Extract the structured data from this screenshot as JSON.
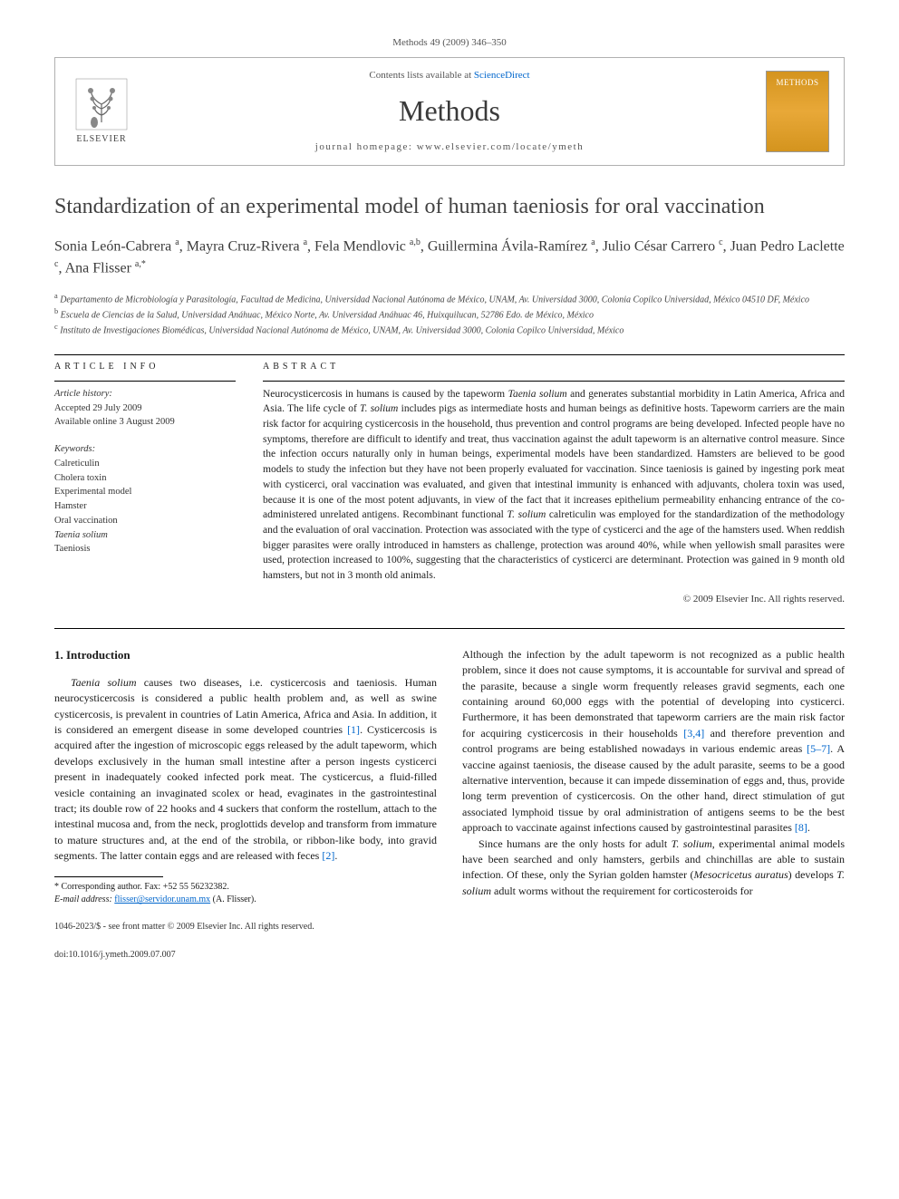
{
  "header": {
    "citation": "Methods 49 (2009) 346–350",
    "contents_prefix": "Contents lists available at ",
    "contents_link": "ScienceDirect",
    "journal": "Methods",
    "homepage_prefix": "journal homepage: ",
    "homepage_url": "www.elsevier.com/locate/ymeth",
    "elsevier": "ELSEVIER",
    "cover_label": "METHODS"
  },
  "article": {
    "title": "Standardization of an experimental model of human taeniosis for oral vaccination",
    "authors_html": "Sonia León-Cabrera <sup>a</sup>, Mayra Cruz-Rivera <sup>a</sup>, Fela Mendlovic <sup>a,b</sup>, Guillermina Ávila-Ramírez <sup>a</sup>, Julio César Carrero <sup>c</sup>, Juan Pedro Laclette <sup>c</sup>, Ana Flisser <sup>a,*</sup>",
    "affiliations": [
      "a Departamento de Microbiología y Parasitología, Facultad de Medicina, Universidad Nacional Autónoma de México, UNAM, Av. Universidad 3000, Colonia Copilco Universidad, México 04510 DF, México",
      "b Escuela de Ciencias de la Salud, Universidad Anáhuac, México Norte, Av. Universidad Anáhuac 46, Huixquilucan, 52786 Edo. de México, México",
      "c Instituto de Investigaciones Biomédicas, Universidad Nacional Autónoma de México, UNAM, Av. Universidad 3000, Colonia Copilco Universidad, México"
    ]
  },
  "info": {
    "label": "ARTICLE INFO",
    "history_label": "Article history:",
    "accepted": "Accepted 29 July 2009",
    "online": "Available online 3 August 2009",
    "keywords_label": "Keywords:",
    "keywords": [
      "Calreticulin",
      "Cholera toxin",
      "Experimental model",
      "Hamster",
      "Oral vaccination",
      "Taenia solium",
      "Taeniosis"
    ]
  },
  "abstract": {
    "label": "ABSTRACT",
    "text": "Neurocysticercosis in humans is caused by the tapeworm Taenia solium and generates substantial morbidity in Latin America, Africa and Asia. The life cycle of T. solium includes pigs as intermediate hosts and human beings as definitive hosts. Tapeworm carriers are the main risk factor for acquiring cysticercosis in the household, thus prevention and control programs are being developed. Infected people have no symptoms, therefore are difficult to identify and treat, thus vaccination against the adult tapeworm is an alternative control measure. Since the infection occurs naturally only in human beings, experimental models have been standardized. Hamsters are believed to be good models to study the infection but they have not been properly evaluated for vaccination. Since taeniosis is gained by ingesting pork meat with cysticerci, oral vaccination was evaluated, and given that intestinal immunity is enhanced with adjuvants, cholera toxin was used, because it is one of the most potent adjuvants, in view of the fact that it increases epithelium permeability enhancing entrance of the co-administered unrelated antigens. Recombinant functional T. solium calreticulin was employed for the standardization of the methodology and the evaluation of oral vaccination. Protection was associated with the type of cysticerci and the age of the hamsters used. When reddish bigger parasites were orally introduced in hamsters as challenge, protection was around 40%, while when yellowish small parasites were used, protection increased to 100%, suggesting that the characteristics of cysticerci are determinant. Protection was gained in 9 month old hamsters, but not in 3 month old animals.",
    "copyright": "© 2009 Elsevier Inc. All rights reserved."
  },
  "body": {
    "section_heading": "1. Introduction",
    "col1_p1": "Taenia solium causes two diseases, i.e. cysticercosis and taeniosis. Human neurocysticercosis is considered a public health problem and, as well as swine cysticercosis, is prevalent in countries of Latin America, Africa and Asia. In addition, it is considered an emergent disease in some developed countries [1]. Cysticercosis is acquired after the ingestion of microscopic eggs released by the adult tapeworm, which develops exclusively in the human small intestine after a person ingests cysticerci present in inadequately cooked infected pork meat. The cysticercus, a fluid-filled vesicle containing an invaginated scolex or head, evaginates in the gastrointestinal tract; its double row of 22 hooks and 4 suckers that conform the rostellum, attach to the intestinal mucosa and, from the neck, proglottids develop and transform from immature to mature structures and, at the end of the strobila, or ribbon-like body, into gravid segments. The latter contain eggs and are released with feces [2].",
    "col2_p1": "Although the infection by the adult tapeworm is not recognized as a public health problem, since it does not cause symptoms, it is accountable for survival and spread of the parasite, because a single worm frequently releases gravid segments, each one containing around 60,000 eggs with the potential of developing into cysticerci. Furthermore, it has been demonstrated that tapeworm carriers are the main risk factor for acquiring cysticercosis in their households [3,4] and therefore prevention and control programs are being established nowadays in various endemic areas [5–7]. A vaccine against taeniosis, the disease caused by the adult parasite, seems to be a good alternative intervention, because it can impede dissemination of eggs and, thus, provide long term prevention of cysticercosis. On the other hand, direct stimulation of gut associated lymphoid tissue by oral administration of antigens seems to be the best approach to vaccinate against infections caused by gastrointestinal parasites [8].",
    "col2_p2": "Since humans are the only hosts for adult T. solium, experimental animal models have been searched and only hamsters, gerbils and chinchillas are able to sustain infection. Of these, only the Syrian golden hamster (Mesocricetus auratus) develops T. solium adult worms without the requirement for corticosteroids for"
  },
  "footnote": {
    "corr": "* Corresponding author. Fax: +52 55 56232382.",
    "email_label": "E-mail address:",
    "email": "flisser@servidor.unam.mx",
    "email_suffix": "(A. Flisser)."
  },
  "footer": {
    "left": "1046-2023/$ - see front matter © 2009 Elsevier Inc. All rights reserved.",
    "doi": "doi:10.1016/j.ymeth.2009.07.007"
  },
  "colors": {
    "link": "#0066cc",
    "text": "#1a1a1a",
    "rule": "#000000",
    "cover_bg": "#d4941e"
  }
}
